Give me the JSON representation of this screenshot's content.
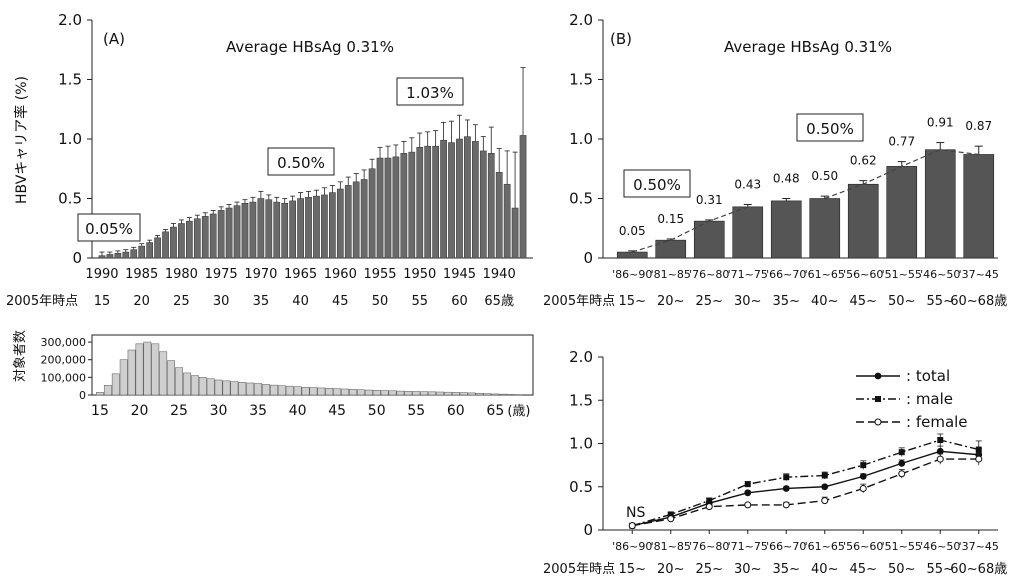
{
  "chart_data": [
    {
      "id": "A",
      "type": "bar",
      "panel_label": "(A)",
      "title": "Average HBsAg 0.31%",
      "ylabel": "HBVキャリア率 (%)",
      "ylim": [
        0,
        2.0
      ],
      "yticks": [
        "0",
        "0.5",
        "1.0",
        "1.5",
        "2.0"
      ],
      "xticks": [
        "1990",
        "1985",
        "1980",
        "1975",
        "1970",
        "1965",
        "1960",
        "1955",
        "1950",
        "1945",
        "1940"
      ],
      "age_row_label": "2005年時点",
      "age_ticks": [
        "15",
        "20",
        "25",
        "30",
        "35",
        "40",
        "45",
        "50",
        "55",
        "60",
        "65歳"
      ],
      "annotations": [
        "0.05%",
        "0.50%",
        "1.03%"
      ],
      "categories": [
        1990,
        1989,
        1988,
        1987,
        1986,
        1985,
        1984,
        1983,
        1982,
        1981,
        1980,
        1979,
        1978,
        1977,
        1976,
        1975,
        1974,
        1973,
        1972,
        1971,
        1970,
        1969,
        1968,
        1967,
        1966,
        1965,
        1964,
        1963,
        1962,
        1961,
        1960,
        1959,
        1958,
        1957,
        1956,
        1955,
        1954,
        1953,
        1952,
        1951,
        1950,
        1949,
        1948,
        1947,
        1946,
        1945,
        1944,
        1943,
        1942,
        1941,
        1940,
        1939,
        1938,
        1937
      ],
      "values": [
        0.02,
        0.03,
        0.04,
        0.05,
        0.07,
        0.1,
        0.13,
        0.17,
        0.22,
        0.26,
        0.29,
        0.31,
        0.33,
        0.35,
        0.37,
        0.4,
        0.42,
        0.44,
        0.46,
        0.47,
        0.5,
        0.49,
        0.47,
        0.46,
        0.48,
        0.5,
        0.51,
        0.52,
        0.53,
        0.55,
        0.58,
        0.61,
        0.64,
        0.66,
        0.75,
        0.84,
        0.84,
        0.85,
        0.88,
        0.89,
        0.93,
        0.94,
        0.94,
        0.99,
        0.97,
        1.0,
        1.02,
        0.98,
        0.9,
        0.88,
        0.72,
        0.62,
        0.42,
        1.03
      ],
      "errors": [
        0.03,
        0.02,
        0.02,
        0.02,
        0.02,
        0.02,
        0.02,
        0.02,
        0.02,
        0.03,
        0.03,
        0.03,
        0.03,
        0.03,
        0.03,
        0.03,
        0.03,
        0.03,
        0.03,
        0.04,
        0.06,
        0.04,
        0.04,
        0.04,
        0.04,
        0.05,
        0.05,
        0.05,
        0.06,
        0.06,
        0.06,
        0.07,
        0.07,
        0.08,
        0.08,
        0.09,
        0.1,
        0.1,
        0.1,
        0.12,
        0.12,
        0.12,
        0.13,
        0.15,
        0.18,
        0.2,
        0.14,
        0.14,
        0.12,
        0.22,
        0.2,
        0.28,
        0.47,
        0.57
      ]
    },
    {
      "id": "B",
      "type": "bar",
      "panel_label": "(B)",
      "title": "Average HBsAg 0.31%",
      "ylim": [
        0,
        2.0
      ],
      "yticks": [
        "0",
        "0.5",
        "1.0",
        "1.5",
        "2.0"
      ],
      "categories": [
        "'86~90",
        "'81~85",
        "'76~80",
        "'71~75",
        "'66~70",
        "'61~65",
        "'56~60",
        "'51~55",
        "'46~50",
        "'37~45"
      ],
      "age_row_label": "2005年時点",
      "age_ticks": [
        "15~",
        "20~",
        "25~",
        "30~",
        "35~",
        "40~",
        "45~",
        "50~",
        "55~",
        "60~68歳"
      ],
      "values": [
        0.05,
        0.15,
        0.31,
        0.43,
        0.48,
        0.5,
        0.62,
        0.77,
        0.91,
        0.87
      ],
      "errors": [
        0.01,
        0.01,
        0.01,
        0.02,
        0.02,
        0.02,
        0.03,
        0.04,
        0.06,
        0.07
      ],
      "value_labels": [
        "0.05",
        "0.15",
        "0.31",
        "0.43",
        "0.48",
        "0.50",
        "0.62",
        "0.77",
        "0.91",
        "0.87"
      ],
      "annotations": [
        "0.50%",
        "0.50%"
      ]
    },
    {
      "id": "C",
      "type": "bar",
      "ylabel": "対象者数",
      "yticks": [
        "0",
        "100,000",
        "200,000",
        "300,000"
      ],
      "ylim": [
        0,
        340000
      ],
      "xticks": [
        "15",
        "20",
        "25",
        "30",
        "35",
        "40",
        "45",
        "50",
        "55",
        "60",
        "65"
      ],
      "xunit": "(歳)",
      "categories": [
        15,
        16,
        17,
        18,
        19,
        20,
        21,
        22,
        23,
        24,
        25,
        26,
        27,
        28,
        29,
        30,
        31,
        32,
        33,
        34,
        35,
        36,
        37,
        38,
        39,
        40,
        41,
        42,
        43,
        44,
        45,
        46,
        47,
        48,
        49,
        50,
        51,
        52,
        53,
        54,
        55,
        56,
        57,
        58,
        59,
        60,
        61,
        62,
        63,
        64,
        65,
        66,
        67,
        68
      ],
      "values": [
        15000,
        55000,
        120000,
        200000,
        255000,
        290000,
        300000,
        290000,
        245000,
        195000,
        155000,
        125000,
        110000,
        100000,
        92000,
        85000,
        80000,
        76000,
        72000,
        68000,
        65000,
        60000,
        56000,
        53000,
        50000,
        47000,
        44000,
        42000,
        40000,
        38000,
        36000,
        34000,
        32000,
        30000,
        28000,
        27000,
        25000,
        24000,
        22000,
        21000,
        20000,
        19000,
        18000,
        17000,
        16000,
        15000,
        14000,
        12000,
        10000,
        8000,
        6000,
        5000,
        3000,
        2000
      ]
    },
    {
      "id": "D",
      "type": "line",
      "ylim": [
        0,
        2.0
      ],
      "yticks": [
        "0",
        "0.5",
        "1.0",
        "1.5",
        "2.0"
      ],
      "categories": [
        "'86~90",
        "'81~85",
        "'76~80",
        "'71~75",
        "'66~70",
        "'61~65",
        "'56~60",
        "'51~55",
        "'46~50",
        "'37~45"
      ],
      "age_row_label": "2005年時点",
      "age_ticks": [
        "15~",
        "20~",
        "25~",
        "30~",
        "35~",
        "40~",
        "45~",
        "50~",
        "55~",
        "60~68歳"
      ],
      "annotation": "NS",
      "legend_position": "top-right",
      "series": [
        {
          "name": ": total",
          "style": "solid",
          "marker": "filled-circle",
          "values": [
            0.05,
            0.15,
            0.31,
            0.43,
            0.48,
            0.5,
            0.62,
            0.77,
            0.91,
            0.87
          ],
          "errors": [
            0.01,
            0.01,
            0.02,
            0.02,
            0.02,
            0.02,
            0.03,
            0.04,
            0.06,
            0.07
          ]
        },
        {
          "name": ": male",
          "style": "dash-dot",
          "marker": "filled-square",
          "values": [
            0.05,
            0.18,
            0.34,
            0.53,
            0.61,
            0.63,
            0.75,
            0.9,
            1.04,
            0.93
          ],
          "errors": [
            0.01,
            0.02,
            0.03,
            0.03,
            0.04,
            0.04,
            0.05,
            0.05,
            0.07,
            0.1
          ]
        },
        {
          "name": ": female",
          "style": "dashed",
          "marker": "open-circle",
          "values": [
            0.05,
            0.13,
            0.27,
            0.29,
            0.29,
            0.34,
            0.48,
            0.65,
            0.82,
            0.82
          ],
          "errors": [
            0.01,
            0.01,
            0.02,
            0.02,
            0.03,
            0.04,
            0.05,
            0.05,
            0.06,
            0.07
          ]
        }
      ]
    }
  ]
}
